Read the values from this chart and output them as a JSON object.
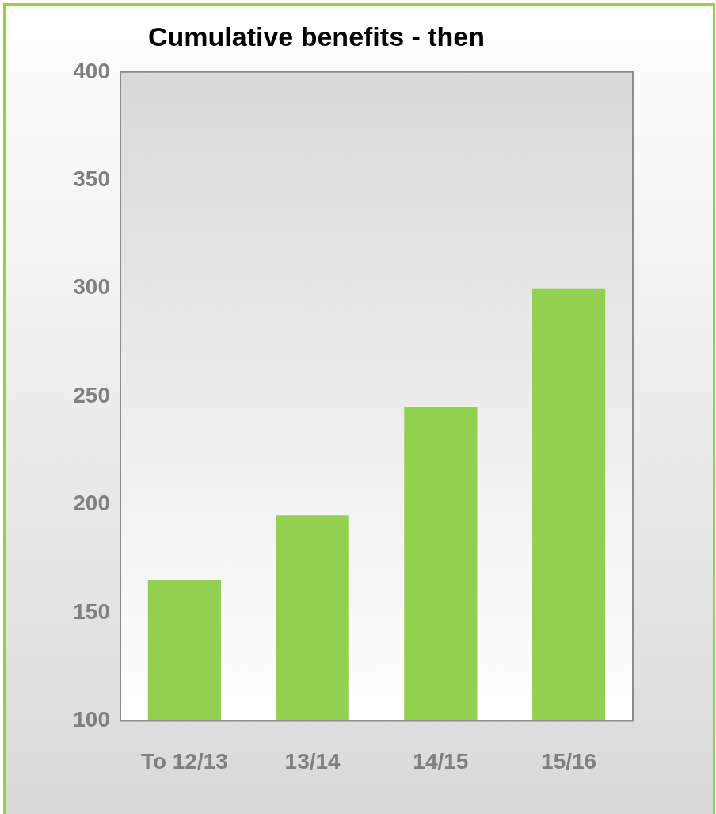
{
  "chart_data": {
    "type": "bar",
    "title": "Cumulative benefits - then",
    "categories": [
      "To 12/13",
      "13/14",
      "14/15",
      "15/16"
    ],
    "values": [
      165,
      195,
      245,
      300
    ],
    "color": "#92d050",
    "ylim": [
      100,
      400
    ],
    "yticks": [
      100,
      150,
      200,
      250,
      300,
      350,
      400
    ],
    "grid": false,
    "legend": false
  }
}
